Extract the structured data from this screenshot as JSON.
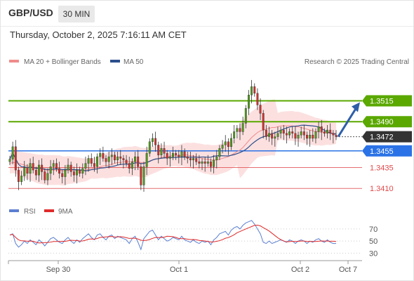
{
  "header": {
    "symbol": "GBP/USD",
    "timeframe": "30 MIN"
  },
  "timestamp": "Thursday, October 2, 2025 7:16:11 AM CET",
  "legend": {
    "ma20": "MA 20 + Bollinger Bands",
    "ma50": "MA 50",
    "credit": "Research © 2025 Trading Central",
    "rsi": "RSI",
    "rsi_ma": "9MA"
  },
  "colors": {
    "resistance": "#5aa800",
    "pivot": "#2a72e6",
    "support": "#e0494b",
    "current": "#333333",
    "up_candle": "#4f9a1a",
    "down_candle": "#d0312d",
    "ma20": "#f08c8c",
    "ma50": "#2c4f8c",
    "rsi": "#5b7fd0",
    "rsi_ma": "#e02a2a"
  },
  "chart_data": [
    {
      "type": "candlestick",
      "ylim": [
        1.3395,
        1.3555
      ],
      "price_levels": [
        {
          "label": "1.3515",
          "value": 1.3515,
          "kind": "resistance"
        },
        {
          "label": "1.3490",
          "value": 1.349,
          "kind": "resistance"
        },
        {
          "label": "1.3472",
          "value": 1.3472,
          "kind": "current"
        },
        {
          "label": "1.3455",
          "value": 1.3455,
          "kind": "pivot"
        },
        {
          "label": "1.3435",
          "value": 1.3435,
          "kind": "support"
        },
        {
          "label": "1.3410",
          "value": 1.341,
          "kind": "support"
        }
      ],
      "x_ticks": [
        "Sep 30",
        "Oct 1",
        "Oct 2",
        "Oct 7"
      ],
      "close": [
        1.3445,
        1.346,
        1.3432,
        1.3418,
        1.3425,
        1.3435,
        1.3428,
        1.344,
        1.3432,
        1.3426,
        1.3438,
        1.343,
        1.342,
        1.3428,
        1.3436,
        1.344,
        1.3434,
        1.3428,
        1.3424,
        1.3432,
        1.3438,
        1.343,
        1.3426,
        1.3432,
        1.3428,
        1.3434,
        1.344,
        1.3446,
        1.344,
        1.3436,
        1.3448,
        1.3452,
        1.3446,
        1.3442,
        1.3448,
        1.345,
        1.3444,
        1.3448,
        1.3446,
        1.3444,
        1.344,
        1.3434,
        1.3442,
        1.3448,
        1.3436,
        1.3414,
        1.3436,
        1.3452,
        1.3466,
        1.347,
        1.3462,
        1.345,
        1.3458,
        1.3452,
        1.3446,
        1.3448,
        1.3452,
        1.345,
        1.3448,
        1.3454,
        1.3448,
        1.3446,
        1.3444,
        1.3446,
        1.3442,
        1.344,
        1.3442,
        1.344,
        1.3442,
        1.3436,
        1.3444,
        1.3448,
        1.3458,
        1.3462,
        1.3466,
        1.346,
        1.347,
        1.3478,
        1.3482,
        1.3478,
        1.3488,
        1.3506,
        1.3522,
        1.3532,
        1.3524,
        1.351,
        1.35,
        1.348,
        1.3472,
        1.3476,
        1.347,
        1.3472,
        1.3476,
        1.348,
        1.3476,
        1.3474,
        1.3478,
        1.3476,
        1.347,
        1.3474,
        1.3478,
        1.3474,
        1.347,
        1.3474,
        1.347,
        1.3478,
        1.3484,
        1.3478,
        1.3476,
        1.348,
        1.3476,
        1.3474,
        1.3472
      ],
      "ma20": [
        1.344,
        1.3441,
        1.3441,
        1.344,
        1.3439,
        1.3438,
        1.3437,
        1.3436,
        1.3435,
        1.3434,
        1.3433,
        1.3433,
        1.3432,
        1.3432,
        1.3432,
        1.3432,
        1.3432,
        1.3432,
        1.3431,
        1.3431,
        1.3432,
        1.3432,
        1.3432,
        1.3432,
        1.3432,
        1.3432,
        1.3432,
        1.3433,
        1.3434,
        1.3434,
        1.3435,
        1.3436,
        1.3437,
        1.3437,
        1.3438,
        1.3439,
        1.344,
        1.3441,
        1.3441,
        1.3442,
        1.3442,
        1.3442,
        1.3442,
        1.3443,
        1.3442,
        1.3441,
        1.3441,
        1.3441,
        1.3443,
        1.3444,
        1.3445,
        1.3446,
        1.3447,
        1.3448,
        1.3448,
        1.3449,
        1.3449,
        1.3449,
        1.3449,
        1.345,
        1.345,
        1.345,
        1.3449,
        1.3449,
        1.3448,
        1.3447,
        1.3446,
        1.3445,
        1.3445,
        1.3444,
        1.3444,
        1.3444,
        1.3445,
        1.3446,
        1.3447,
        1.3448,
        1.345,
        1.3452,
        1.3454,
        1.3456,
        1.3459,
        1.3463,
        1.3467,
        1.3471,
        1.3474,
        1.3477,
        1.3479,
        1.348,
        1.3481,
        1.3482,
        1.3483,
        1.3483,
        1.3484,
        1.3485,
        1.3485,
        1.3485,
        1.3485,
        1.3485,
        1.3484,
        1.3484,
        1.3483,
        1.3482,
        1.3481,
        1.348,
        1.3479,
        1.3478,
        1.3478,
        1.3477,
        1.3477,
        1.3477,
        1.3476,
        1.3476,
        1.3476
      ],
      "rsi": [
        60,
        62,
        46,
        40,
        44,
        50,
        46,
        52,
        48,
        44,
        52,
        48,
        42,
        48,
        54,
        56,
        52,
        48,
        46,
        52,
        56,
        50,
        46,
        52,
        48,
        54,
        58,
        62,
        56,
        52,
        60,
        62,
        56,
        52,
        58,
        60,
        54,
        58,
        56,
        54,
        52,
        46,
        54,
        58,
        48,
        36,
        54,
        60,
        66,
        68,
        60,
        52,
        58,
        54,
        50,
        52,
        56,
        54,
        52,
        58,
        52,
        50,
        48,
        52,
        48,
        46,
        50,
        48,
        50,
        44,
        52,
        56,
        62,
        64,
        66,
        60,
        68,
        72,
        74,
        70,
        76,
        80,
        82,
        84,
        78,
        70,
        62,
        48,
        46,
        50,
        46,
        48,
        50,
        52,
        50,
        48,
        52,
        50,
        46,
        50,
        52,
        50,
        46,
        50,
        48,
        52,
        54,
        50,
        48,
        52,
        48,
        46,
        46
      ]
    }
  ]
}
